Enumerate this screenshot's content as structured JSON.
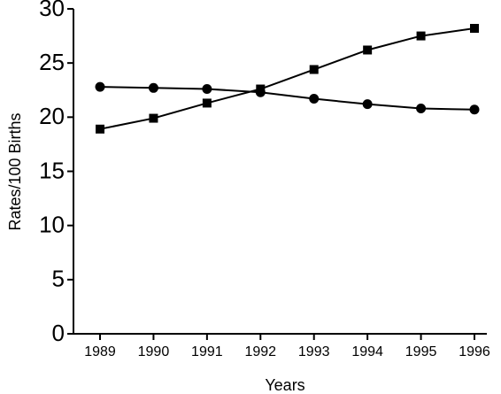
{
  "chart_data": {
    "type": "line",
    "x_label": "Years",
    "y_label": "Rates/100 Births",
    "categories": [
      "1989",
      "1990",
      "1991",
      "1992",
      "1993",
      "1994",
      "1995",
      "1996"
    ],
    "series": [
      {
        "color": "#000000",
        "marker": "circle",
        "values": [
          22.8,
          22.7,
          22.6,
          22.3,
          21.7,
          21.2,
          20.8,
          20.7
        ]
      },
      {
        "color": "#000000",
        "marker": "square",
        "values": [
          18.9,
          19.9,
          21.3,
          22.6,
          24.4,
          26.2,
          27.5,
          28.2
        ]
      }
    ],
    "ylim": [
      0,
      30
    ],
    "yticks": [
      0,
      5,
      10,
      15,
      20,
      25,
      30
    ],
    "grid": false
  }
}
